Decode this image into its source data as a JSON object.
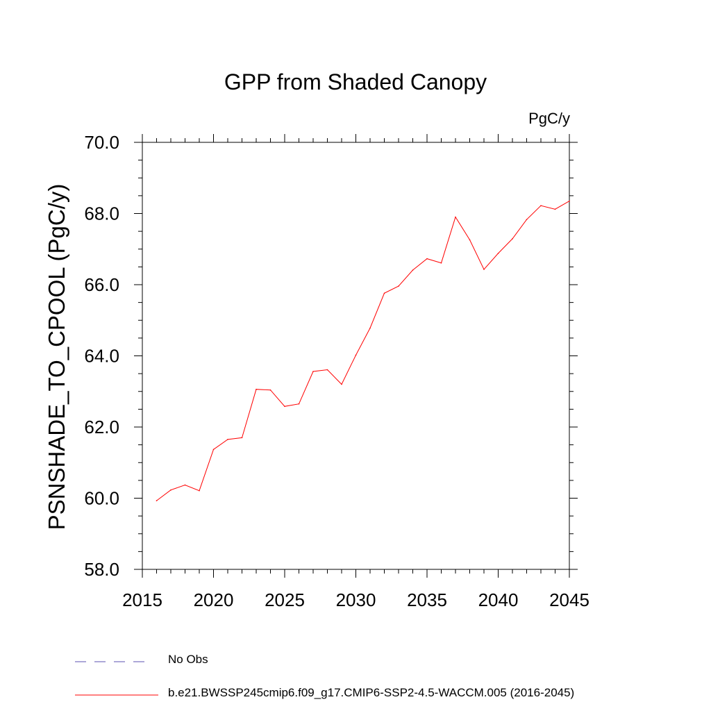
{
  "chart_data": {
    "type": "line",
    "title": "GPP from Shaded Canopy",
    "units_label": "PgC/y",
    "ylabel": "PSNSHADE_TO_CPOOL  (PgC/y)",
    "xlabel": "",
    "xlim": [
      2015,
      2045
    ],
    "ylim": [
      58,
      70
    ],
    "x_ticks": [
      2015,
      2020,
      2025,
      2030,
      2035,
      2040,
      2045
    ],
    "x_tick_labels": [
      "2015",
      "2020",
      "2025",
      "2030",
      "2035",
      "2040",
      "2045"
    ],
    "y_ticks": [
      58,
      60,
      62,
      64,
      66,
      68,
      70
    ],
    "y_tick_labels": [
      "58.0",
      "60.0",
      "62.0",
      "64.0",
      "66.0",
      "68.0",
      "70.0"
    ],
    "grid": false,
    "legend_position": "bottom",
    "series": [
      {
        "name": "b.e21.BWSSP245cmip6.f09_g17.CMIP6-SSP2-4.5-WACCM.005 (2016-2045)",
        "color": "#ff0000",
        "line_style": "solid",
        "x": [
          2016,
          2017,
          2018,
          2019,
          2020,
          2021,
          2022,
          2023,
          2024,
          2025,
          2026,
          2027,
          2028,
          2029,
          2030,
          2031,
          2032,
          2033,
          2034,
          2035,
          2036,
          2037,
          2038,
          2039,
          2040,
          2041,
          2042,
          2043,
          2044,
          2045
        ],
        "y": [
          59.93,
          60.23,
          60.37,
          60.21,
          61.37,
          61.65,
          61.7,
          63.06,
          63.04,
          62.58,
          62.65,
          63.56,
          63.61,
          63.2,
          64.02,
          64.78,
          65.76,
          65.96,
          66.41,
          66.73,
          66.61,
          67.9,
          67.26,
          66.43,
          66.88,
          67.29,
          67.83,
          68.22,
          68.12,
          68.35
        ]
      }
    ],
    "legend": [
      {
        "label": "No Obs",
        "color": "#5a4fb0",
        "line_style": "dashed"
      },
      {
        "label": "b.e21.BWSSP245cmip6.f09_g17.CMIP6-SSP2-4.5-WACCM.005 (2016-2045)",
        "color": "#ff0000",
        "line_style": "solid"
      }
    ]
  }
}
